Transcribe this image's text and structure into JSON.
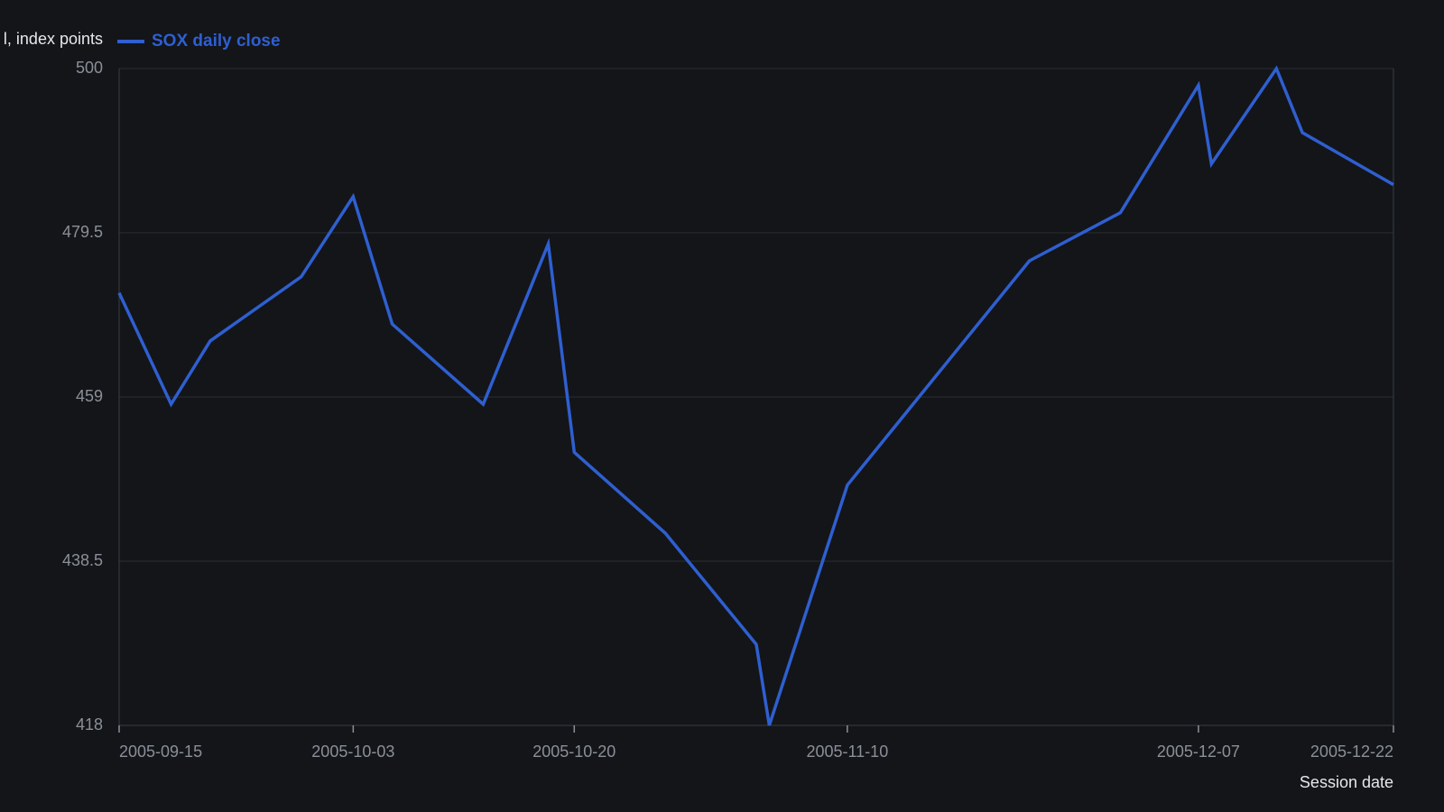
{
  "chart_data": {
    "type": "line",
    "y_label": "l, index points",
    "x_label": "Session date",
    "x": [
      "2005-09-15",
      "2005-09-19",
      "2005-09-22",
      "2005-09-29",
      "2005-10-03",
      "2005-10-06",
      "2005-10-13",
      "2005-10-18",
      "2005-10-20",
      "2005-10-27",
      "2005-11-03",
      "2005-11-04",
      "2005-11-10",
      "2005-11-24",
      "2005-12-01",
      "2005-12-07",
      "2005-12-08",
      "2005-12-13",
      "2005-12-15",
      "2005-12-22"
    ],
    "series": [
      {
        "name": "SOX daily close",
        "color": "#2f5fd0",
        "values": [
          472.0,
          458.1,
          466.0,
          474.0,
          484.0,
          468.1,
          458.1,
          478.1,
          452.1,
          442.0,
          428.1,
          418.0,
          448.0,
          476.0,
          482.0,
          497.9,
          488.1,
          500.0,
          492.0,
          485.5
        ]
      }
    ],
    "xlim": [
      "2005-09-15",
      "2005-12-22"
    ],
    "xticks": [
      "2005-09-15",
      "2005-10-03",
      "2005-10-20",
      "2005-11-10",
      "2005-12-07",
      "2005-12-22"
    ],
    "ylim": [
      418,
      500
    ],
    "yticks": [
      418,
      438.5,
      459,
      479.5,
      500
    ],
    "grid": true,
    "legend": "top-left"
  }
}
